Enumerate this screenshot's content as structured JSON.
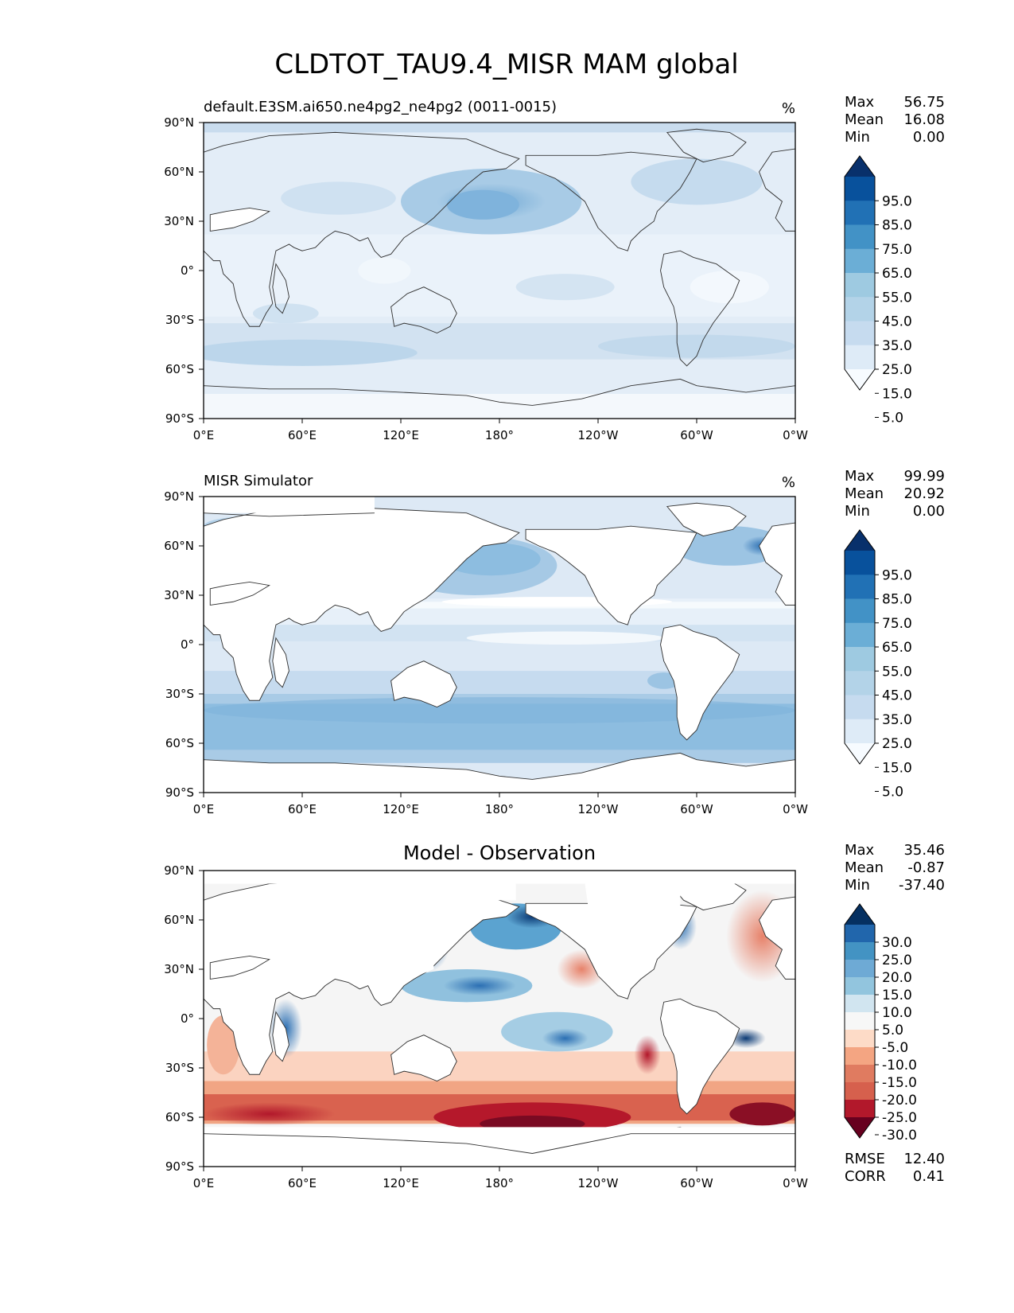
{
  "figure": {
    "title": "CLDTOT_TAU9.4_MISR MAM global"
  },
  "axes": {
    "lat_ticks": [
      "90°N",
      "60°N",
      "30°N",
      "0°",
      "30°S",
      "60°S",
      "90°S"
    ],
    "lon_ticks": [
      "0°E",
      "60°E",
      "120°E",
      "180°",
      "120°W",
      "60°W",
      "0°W"
    ]
  },
  "panels": [
    {
      "id": "test",
      "left_title": "default.E3SM.ai650.ne4pg2_ne4pg2 (0011-0015)",
      "center_title": "",
      "units": "%",
      "stats": [
        {
          "label": "Max",
          "value": "56.75"
        },
        {
          "label": "Mean",
          "value": "16.08"
        },
        {
          "label": "Min",
          "value": "0.00"
        }
      ],
      "colorbar": {
        "labels": [
          "95.0",
          "85.0",
          "75.0",
          "65.0",
          "55.0",
          "45.0",
          "35.0",
          "25.0",
          "15.0",
          "5.0"
        ],
        "colors": [
          "#08306b",
          "#08519c",
          "#2171b5",
          "#4292c6",
          "#6baed6",
          "#9ecae1",
          "#b3d3e8",
          "#c6dbef",
          "#deebf7",
          "#f7fbff"
        ]
      }
    },
    {
      "id": "reference",
      "left_title": "MISR Simulator",
      "center_title": "",
      "units": "%",
      "stats": [
        {
          "label": "Max",
          "value": "99.99"
        },
        {
          "label": "Mean",
          "value": "20.92"
        },
        {
          "label": "Min",
          "value": "0.00"
        }
      ],
      "colorbar": {
        "labels": [
          "95.0",
          "85.0",
          "75.0",
          "65.0",
          "55.0",
          "45.0",
          "35.0",
          "25.0",
          "15.0",
          "5.0"
        ],
        "colors": [
          "#08306b",
          "#08519c",
          "#2171b5",
          "#4292c6",
          "#6baed6",
          "#9ecae1",
          "#b3d3e8",
          "#c6dbef",
          "#deebf7",
          "#f7fbff"
        ]
      }
    },
    {
      "id": "difference",
      "left_title": "",
      "center_title": "Model - Observation",
      "units": "",
      "stats": [
        {
          "label": "Max",
          "value": "35.46"
        },
        {
          "label": "Mean",
          "value": "-0.87"
        },
        {
          "label": "Min",
          "value": "-37.40"
        }
      ],
      "colorbar": {
        "labels": [
          "30.0",
          "25.0",
          "20.0",
          "15.0",
          "10.0",
          "5.0",
          "-5.0",
          "-10.0",
          "-15.0",
          "-20.0",
          "-25.0",
          "-30.0"
        ],
        "colors": [
          "#053061",
          "#2166ac",
          "#4393c3",
          "#6eaad5",
          "#92c5de",
          "#d1e5f0",
          "#f7f7f7",
          "#fddbc7",
          "#f4a582",
          "#e07b60",
          "#d6604d",
          "#b2182b",
          "#67001f"
        ]
      },
      "metrics": [
        {
          "label": "RMSE",
          "value": "12.40"
        },
        {
          "label": "CORR",
          "value": "0.41"
        }
      ]
    }
  ]
}
